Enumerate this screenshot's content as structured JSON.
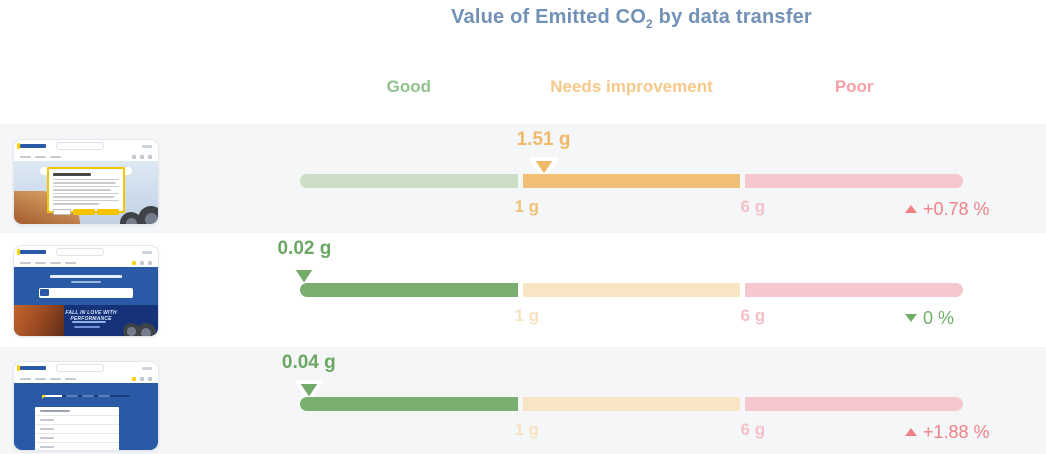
{
  "title": {
    "pre": "Value of Emitted CO",
    "sub": "2",
    "post": " by data transfer"
  },
  "legend": {
    "good": "Good",
    "needs_improvement": "Needs improvement",
    "poor": "Poor"
  },
  "colors": {
    "title": "#7291b7",
    "legend_good": "#90c28b",
    "legend_needs_improvement": "#f6c98a",
    "legend_poor": "#f4a1a6",
    "segment_good_active": "#7aaf70",
    "segment_good_muted": "#cbddc5",
    "segment_needs_active": "#f0bf75",
    "segment_needs_muted": "#f8e5c4",
    "segment_poor_muted": "#f6c8cd",
    "trend_up": "#ef8185",
    "trend_down": "#6fae67",
    "row_background": "#f5f6f8",
    "thumbnail_brand_blue": "#2a59a5",
    "thumbnail_brand_yellow": "#f5c400"
  },
  "chart_data": {
    "type": "bar",
    "variant": "bullet-gauge-rows",
    "title": "Value of Emitted CO2 by data transfer",
    "unit": "g",
    "zones": [
      {
        "label": "Good",
        "range": "0 to 1 g"
      },
      {
        "label": "Needs improvement",
        "range": "1 to 6 g"
      },
      {
        "label": "Poor",
        "range": "above 6 g"
      }
    ],
    "axis_ticks": [
      "1 g",
      "6 g"
    ],
    "rows": [
      {
        "page_thumbnail": "michelin-site-cookie-consent-dialog",
        "value": 1.51,
        "value_label": "1.51 g",
        "zone": "Needs improvement",
        "change_label": "+0.78 %",
        "change_direction": "up",
        "change_color": "#ef8185"
      },
      {
        "page_thumbnail": "michelin-site-homepage-hero",
        "value": 0.02,
        "value_label": "0.02 g",
        "zone": "Good",
        "change_label": "0 %",
        "change_direction": "down",
        "change_color": "#6fae67"
      },
      {
        "page_thumbnail": "michelin-site-tire-search-dropdown",
        "value": 0.04,
        "value_label": "0.04 g",
        "zone": "Good",
        "change_label": "+1.88 %",
        "change_direction": "up",
        "change_color": "#ef8185"
      }
    ],
    "banner_text_row2": "FALL IN LOVE WITH PERFORMANCE"
  }
}
